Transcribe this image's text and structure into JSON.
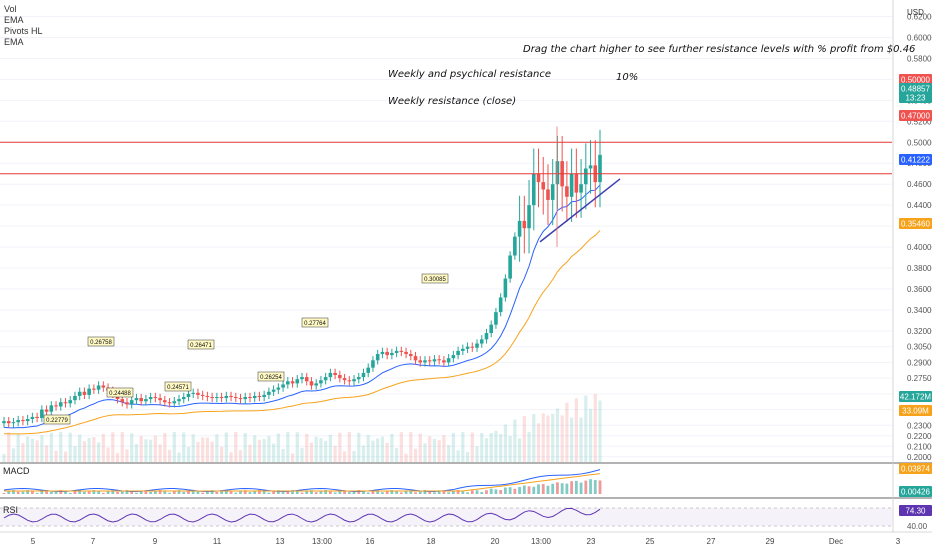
{
  "legend": [
    "Vol",
    "EMA",
    "Pivots HL",
    "EMA"
  ],
  "annotations": {
    "top_note": "Drag the chart higher to see further resistance levels with % profit from $0.46",
    "weekly_psych": "Weekly and psychical resistance",
    "weekly_close": "Weekly resistance (close)",
    "percent": "10%"
  },
  "currency": "USD",
  "colors": {
    "up": "#26a69a",
    "down": "#ef5350",
    "ema_fast": "#2962ff",
    "ema_slow": "#f7a21b",
    "resistance": "#e53935",
    "rsi": "#5e35b1",
    "trend": "#3f3fb0"
  },
  "price_axis": {
    "ticks": [
      "0.62000",
      "0.60000",
      "0.58000",
      "0.56000",
      "0.54000",
      "0.52000",
      "0.50000",
      "0.48000",
      "0.46000",
      "0.44000",
      "0.42000",
      "0.40000",
      "0.38000",
      "0.36000",
      "0.34000",
      "0.32000",
      "0.30500",
      "0.29000",
      "0.27500",
      "0.26000",
      "0.24500",
      "0.23000",
      "0.22000",
      "0.21000",
      "0.20000"
    ]
  },
  "axis_badges": [
    {
      "text": "0.50000",
      "color": "#ef5350"
    },
    {
      "text": "0.48857",
      "color": "#26a69a"
    },
    {
      "text": "13:23",
      "color": "#26a69a"
    },
    {
      "text": "0.47000",
      "color": "#ef5350"
    },
    {
      "text": "0.41222",
      "color": "#2962ff"
    },
    {
      "text": "0.35460",
      "color": "#f7a21b"
    },
    {
      "text": "42.172M",
      "color": "#26a69a"
    },
    {
      "text": "33.09M",
      "color": "#f7a21b"
    },
    {
      "text": "0.03874",
      "color": "#f7a21b"
    },
    {
      "text": "0.00426",
      "color": "#26a69a"
    },
    {
      "text": "74.30",
      "color": "#5e35b1"
    }
  ],
  "panels": {
    "macd_label": "MACD",
    "rsi_label": "RSI",
    "rsi_levels": [
      "70.00",
      "40.00"
    ]
  },
  "x_axis": {
    "labels": [
      "5",
      "7",
      "9",
      "11",
      "13",
      "13:00",
      "16",
      "18",
      "20",
      "13:00",
      "23",
      "25",
      "27",
      "29",
      "Dec",
      "3"
    ]
  },
  "pivots": [
    "0.26758",
    "0.24488",
    "0.24571",
    "0.26471",
    "0.26254",
    "0.27764",
    "0.30085",
    "0.22779"
  ],
  "chart_data": {
    "type": "candlestick",
    "resistance_levels": [
      0.5,
      0.47
    ],
    "ylim": [
      0.195,
      0.63
    ],
    "closes": [
      0.234,
      0.232,
      0.233,
      0.235,
      0.234,
      0.236,
      0.238,
      0.237,
      0.245,
      0.243,
      0.249,
      0.248,
      0.252,
      0.251,
      0.254,
      0.258,
      0.262,
      0.259,
      0.265,
      0.264,
      0.268,
      0.266,
      0.263,
      0.26,
      0.255,
      0.252,
      0.25,
      0.254,
      0.256,
      0.253,
      0.255,
      0.257,
      0.256,
      0.254,
      0.252,
      0.251,
      0.253,
      0.255,
      0.257,
      0.26,
      0.261,
      0.259,
      0.258,
      0.257,
      0.256,
      0.257,
      0.256,
      0.258,
      0.257,
      0.256,
      0.255,
      0.257,
      0.256,
      0.258,
      0.257,
      0.259,
      0.262,
      0.264,
      0.266,
      0.269,
      0.272,
      0.27,
      0.274,
      0.276,
      0.272,
      0.268,
      0.27,
      0.273,
      0.276,
      0.28,
      0.278,
      0.275,
      0.273,
      0.272,
      0.274,
      0.276,
      0.28,
      0.285,
      0.292,
      0.298,
      0.3,
      0.297,
      0.299,
      0.301,
      0.3,
      0.298,
      0.296,
      0.292,
      0.29,
      0.292,
      0.291,
      0.293,
      0.292,
      0.29,
      0.294,
      0.297,
      0.301,
      0.303,
      0.305,
      0.304,
      0.308,
      0.312,
      0.318,
      0.326,
      0.338,
      0.352,
      0.37,
      0.392,
      0.41,
      0.425,
      0.418,
      0.44,
      0.47,
      0.462,
      0.455,
      0.445,
      0.46,
      0.482,
      0.458,
      0.448,
      0.47,
      0.452,
      0.46,
      0.475,
      0.478,
      0.462,
      0.488
    ],
    "volume_last": "42.172M"
  }
}
